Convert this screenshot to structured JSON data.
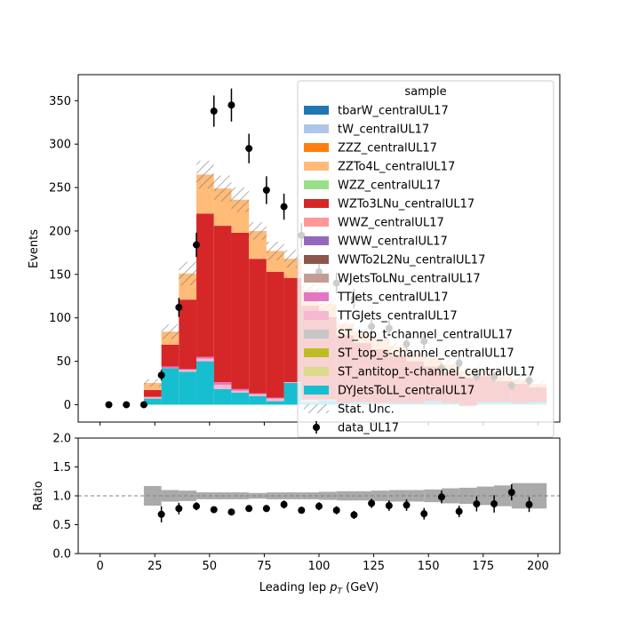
{
  "chart_data": {
    "type": "bar",
    "stacked": true,
    "histogram": true,
    "bin_edges": [
      20,
      28,
      36,
      44,
      52,
      60,
      68,
      76,
      84,
      92,
      100,
      108,
      116,
      124,
      132,
      140,
      148,
      156,
      164,
      172,
      180,
      188,
      196,
      204
    ],
    "xlabel_main": "Leading lep ",
    "xlabel_sub": "T",
    "xlabel_unit": " (GeV)",
    "ylabel": "Events",
    "ratio_ylabel": "Ratio",
    "xlim": [
      -10,
      210
    ],
    "ylim": [
      -20,
      380
    ],
    "ratio_ylim": [
      0,
      2
    ],
    "x_ticks": [
      0,
      25,
      50,
      75,
      100,
      125,
      150,
      175,
      200
    ],
    "y_ticks": [
      0,
      50,
      100,
      150,
      200,
      250,
      300,
      350
    ],
    "ratio_y_ticks": [
      "0.0",
      "0.5",
      "1.0",
      "1.5",
      "2.0"
    ],
    "legend_title": "sample",
    "legend_placement": "upper right",
    "series": [
      {
        "name": "tbarW_centralUL17",
        "color": "#1f77b4",
        "values": [
          0,
          0,
          0,
          0,
          0,
          0,
          0,
          0,
          0,
          0,
          0,
          0,
          0,
          0,
          0,
          0,
          0,
          0,
          0,
          0,
          0,
          0,
          0
        ]
      },
      {
        "name": "tW_centralUL17",
        "color": "#aec7e8",
        "values": [
          0,
          0,
          0,
          0,
          0,
          0,
          0,
          0,
          0,
          0,
          0,
          0,
          0,
          0,
          0,
          0,
          0,
          0,
          0,
          0,
          0,
          0,
          0
        ]
      },
      {
        "name": "ZZZ_centralUL17",
        "color": "#ff7f0e",
        "values": [
          0,
          0,
          0,
          0,
          0,
          0,
          0,
          0,
          0,
          0,
          0,
          0,
          0,
          0,
          0,
          0,
          0,
          0,
          0,
          0,
          0,
          0,
          0
        ]
      },
      {
        "name": "ZZTo4L_centralUL17",
        "color": "#ffbb78",
        "values": [
          8,
          15,
          30,
          45,
          43,
          38,
          32,
          24,
          22,
          18,
          15,
          13,
          12,
          12,
          10,
          9,
          10,
          9,
          8,
          7,
          6,
          5,
          4
        ]
      },
      {
        "name": "WZZ_centralUL17",
        "color": "#98df8a",
        "values": [
          0,
          0,
          0,
          0,
          0,
          0,
          0,
          0,
          0,
          0,
          0,
          0,
          0,
          0,
          0,
          0,
          0,
          0,
          0,
          0,
          0,
          0,
          0
        ]
      },
      {
        "name": "WZTo3LNu_centralUL17",
        "color": "#d62728",
        "values": [
          8,
          25,
          80,
          165,
          180,
          180,
          155,
          145,
          120,
          108,
          95,
          78,
          68,
          62,
          55,
          48,
          40,
          35,
          32,
          30,
          24,
          22,
          17
        ]
      },
      {
        "name": "WWZ_centralUL17",
        "color": "#ff9896",
        "values": [
          0,
          0,
          0,
          0,
          0,
          0,
          0,
          0,
          0,
          0,
          0,
          0,
          0,
          0,
          0,
          0,
          0,
          0,
          0,
          0,
          0,
          0,
          0
        ]
      },
      {
        "name": "WWW_centralUL17",
        "color": "#9467bd",
        "values": [
          0,
          0,
          0,
          0,
          0,
          0,
          0,
          0,
          0,
          0,
          0,
          0,
          0,
          0,
          0,
          0,
          0,
          0,
          0,
          0,
          0,
          0,
          0
        ]
      },
      {
        "name": "WWTo2L2Nu_centralUL17",
        "color": "#8c564b",
        "values": [
          0,
          0,
          0,
          0,
          0,
          0,
          0,
          0,
          0,
          0,
          0,
          0,
          0,
          0,
          0,
          0,
          0,
          0,
          0,
          0,
          0,
          0,
          0
        ]
      },
      {
        "name": "WJetsToLNu_centralUL17",
        "color": "#c49c94",
        "values": [
          0,
          0,
          0,
          0,
          0,
          0,
          0,
          0,
          0,
          0,
          0,
          0,
          0,
          0,
          0,
          0,
          0,
          0,
          0,
          0,
          0,
          0,
          0
        ]
      },
      {
        "name": "TTJets_centralUL17",
        "color": "#e377c2",
        "values": [
          0,
          2,
          1,
          2,
          3,
          2,
          1,
          1,
          0,
          1,
          0,
          0,
          0,
          0,
          0,
          0,
          0,
          0,
          0,
          0,
          0,
          0,
          0
        ]
      },
      {
        "name": "TTGJets_centralUL17",
        "color": "#f7b6d2",
        "values": [
          2,
          0,
          2,
          3,
          5,
          2,
          2,
          3,
          1,
          2,
          1,
          0,
          0,
          1,
          0,
          0,
          0,
          0,
          1,
          0,
          0,
          0,
          0
        ]
      },
      {
        "name": "ST_top_t-channel_centralUL17",
        "color": "#c7c7c7",
        "values": [
          0,
          0,
          0,
          0,
          0,
          0,
          0,
          0,
          0,
          0,
          0,
          0,
          0,
          0,
          0,
          0,
          0,
          0,
          0,
          0,
          0,
          0,
          0
        ]
      },
      {
        "name": "ST_top_s-channel_centralUL17",
        "color": "#bcbd22",
        "values": [
          0,
          0,
          0,
          0,
          0,
          0,
          0,
          0,
          0,
          0,
          0,
          0,
          0,
          0,
          0,
          0,
          0,
          0,
          0,
          0,
          0,
          0,
          0
        ]
      },
      {
        "name": "ST_antitop_t-channel_centralUL17",
        "color": "#dbdb8d",
        "values": [
          0,
          0,
          0,
          0,
          0,
          0,
          0,
          0,
          0,
          0,
          0,
          0,
          0,
          0,
          0,
          0,
          0,
          0,
          0,
          0,
          0,
          0,
          0
        ]
      },
      {
        "name": "DYJetsToLL_centralUL17",
        "color": "#17becf",
        "values": [
          7,
          42,
          38,
          50,
          18,
          14,
          10,
          4,
          25,
          3,
          5,
          2,
          3,
          1,
          2,
          2,
          4,
          2,
          -2,
          3,
          3,
          2,
          3
        ]
      }
    ],
    "stat_unc_label": "Stat. Unc.",
    "stat_unc_fraction": [
      0.17,
      0.1,
      0.09,
      0.06,
      0.06,
      0.06,
      0.05,
      0.06,
      0.06,
      0.06,
      0.07,
      0.08,
      0.08,
      0.09,
      0.1,
      0.1,
      0.11,
      0.13,
      0.14,
      0.16,
      0.18,
      0.22,
      0.22
    ],
    "data": {
      "name": "data_UL17",
      "x": [
        4,
        12,
        20,
        28,
        36,
        44,
        52,
        60,
        68,
        76,
        84,
        92,
        100,
        108,
        116,
        124,
        132,
        140,
        148,
        156,
        164,
        172,
        180,
        188,
        196
      ],
      "y": [
        0,
        0,
        0,
        34,
        112,
        184,
        338,
        345,
        295,
        247,
        228,
        195,
        153,
        140,
        122,
        90,
        88,
        70,
        73,
        42,
        48,
        33,
        32,
        22,
        28
      ],
      "yerr": [
        0,
        0,
        0,
        6,
        11,
        14,
        18,
        19,
        17,
        16,
        15,
        14,
        12,
        12,
        11,
        9,
        9,
        8,
        9,
        6,
        7,
        6,
        6,
        5,
        5
      ]
    },
    "ratio": {
      "x": [
        28,
        36,
        44,
        52,
        60,
        68,
        76,
        84,
        92,
        100,
        108,
        116,
        124,
        132,
        140,
        148,
        156,
        164,
        172,
        180,
        188,
        196
      ],
      "y": [
        0.68,
        0.78,
        0.82,
        0.76,
        0.72,
        0.78,
        0.78,
        0.85,
        0.75,
        0.82,
        0.75,
        0.67,
        0.87,
        0.83,
        0.84,
        0.69,
        0.98,
        0.73,
        0.86,
        0.86,
        1.06,
        0.85
      ],
      "yerr": [
        0.14,
        0.1,
        0.07,
        0.05,
        0.05,
        0.05,
        0.06,
        0.07,
        0.06,
        0.07,
        0.07,
        0.07,
        0.08,
        0.09,
        0.1,
        0.1,
        0.11,
        0.1,
        0.13,
        0.15,
        0.14,
        0.13
      ]
    },
    "ratio_reference": 1.0
  }
}
